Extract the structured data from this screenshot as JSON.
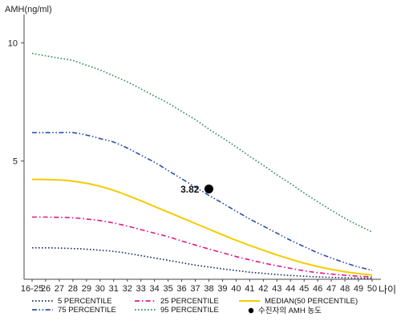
{
  "chart_data": {
    "type": "line",
    "ylabel": "AMH(ng/ml)",
    "xlabel": "나이",
    "categories": [
      "16-25",
      "26",
      "27",
      "28",
      "29",
      "30",
      "31",
      "32",
      "33",
      "34",
      "35",
      "36",
      "37",
      "38",
      "39",
      "40",
      "41",
      "42",
      "43",
      "44",
      "45",
      "46",
      "47",
      "48",
      "49",
      "50"
    ],
    "yticks": [
      5,
      10
    ],
    "ylim": [
      0,
      11.2
    ],
    "grid": false,
    "legend_position": "bottom",
    "series": [
      {
        "name": "5 PERCENTILE",
        "color": "#1b2a6b",
        "dash": "dot",
        "values": [
          1.33,
          1.33,
          1.32,
          1.3,
          1.27,
          1.23,
          1.18,
          1.1,
          1.0,
          0.9,
          0.8,
          0.7,
          0.6,
          0.52,
          0.44,
          0.37,
          0.3,
          0.25,
          0.2,
          0.16,
          0.13,
          0.1,
          0.08,
          0.06,
          0.05,
          0.04
        ]
      },
      {
        "name": "25 PERCENTILE",
        "color": "#e0198a",
        "dash": "dashdot",
        "values": [
          2.63,
          2.63,
          2.62,
          2.6,
          2.55,
          2.48,
          2.38,
          2.25,
          2.1,
          1.95,
          1.8,
          1.62,
          1.45,
          1.28,
          1.12,
          0.96,
          0.82,
          0.69,
          0.57,
          0.46,
          0.36,
          0.28,
          0.22,
          0.17,
          0.13,
          0.1
        ]
      },
      {
        "name": "MEDIAN(50 PERCENTILE)",
        "color": "#f5cc00",
        "dash": "solid",
        "values": [
          4.22,
          4.22,
          4.2,
          4.15,
          4.06,
          3.93,
          3.76,
          3.55,
          3.32,
          3.08,
          2.84,
          2.6,
          2.36,
          2.12,
          1.88,
          1.65,
          1.43,
          1.23,
          1.03,
          0.85,
          0.68,
          0.54,
          0.42,
          0.32,
          0.24,
          0.18
        ]
      },
      {
        "name": "75 PERCENTILE",
        "color": "#2d4fb0",
        "dash": "dashdotdot",
        "values": [
          6.2,
          6.2,
          6.2,
          6.2,
          6.1,
          5.95,
          5.8,
          5.55,
          5.25,
          4.95,
          4.6,
          4.25,
          3.9,
          3.55,
          3.22,
          2.88,
          2.55,
          2.25,
          1.95,
          1.65,
          1.38,
          1.12,
          0.9,
          0.7,
          0.52,
          0.38
        ]
      },
      {
        "name": "95 PERCENTILE",
        "color": "#2e8b57",
        "dash": "dot",
        "values": [
          9.55,
          9.45,
          9.35,
          9.25,
          9.05,
          8.85,
          8.6,
          8.35,
          8.05,
          7.75,
          7.45,
          7.1,
          6.75,
          6.35,
          5.98,
          5.6,
          5.2,
          4.82,
          4.42,
          4.05,
          3.65,
          3.28,
          2.92,
          2.58,
          2.28,
          2.0
        ]
      }
    ],
    "annotations": [
      {
        "label": "3.82",
        "x": "38",
        "y": 3.82,
        "name": "수진자의 AMH 농도",
        "color": "#000000"
      }
    ]
  }
}
